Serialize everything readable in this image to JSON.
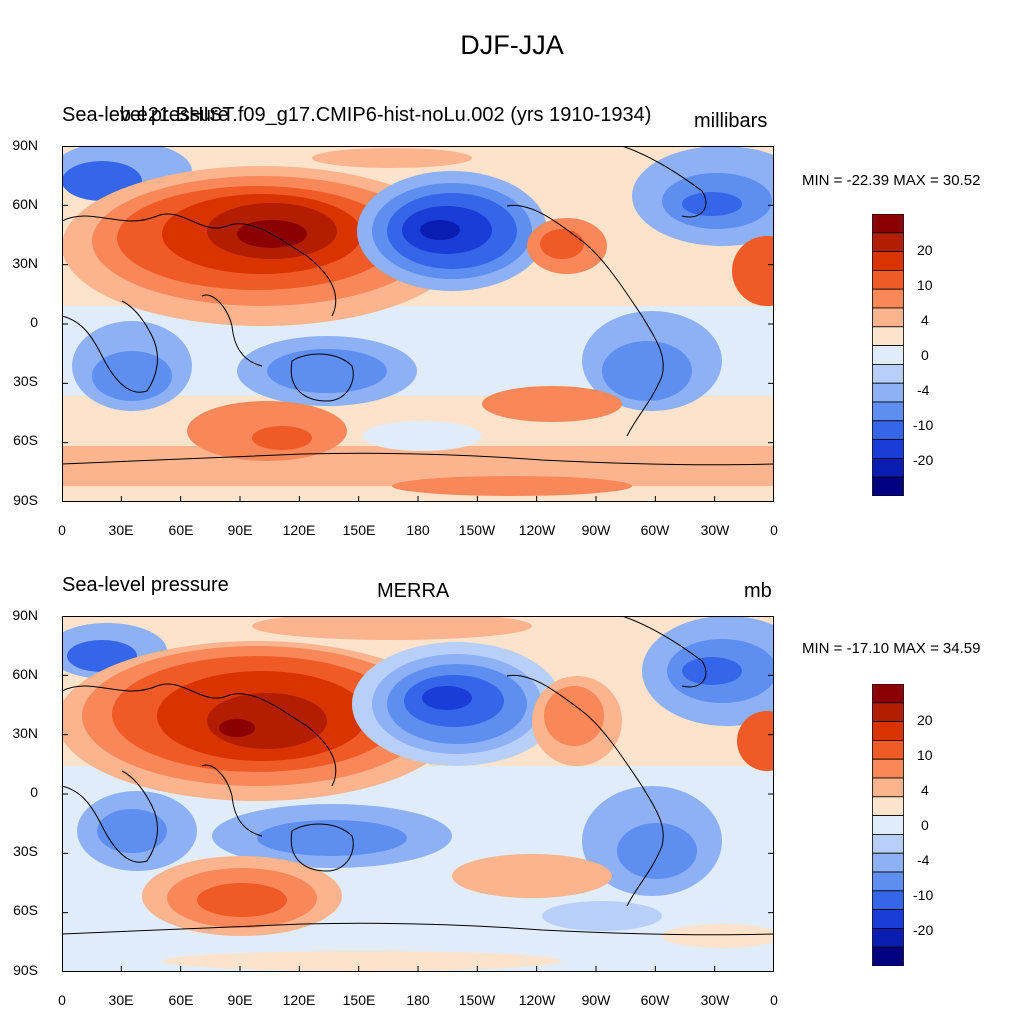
{
  "figure": {
    "title": "DJF-JJA"
  },
  "axes": {
    "lat_labels": [
      "90N",
      "60N",
      "30N",
      "0",
      "30S",
      "60S",
      "90S"
    ],
    "lon_labels": [
      "0",
      "30E",
      "60E",
      "90E",
      "120E",
      "150E",
      "180",
      "150W",
      "120W",
      "90W",
      "60W",
      "30W",
      "0"
    ]
  },
  "colorbar": {
    "labels": [
      "20",
      "10",
      "4",
      "0",
      "-4",
      "-10",
      "-20"
    ],
    "colors": [
      "#8b0000",
      "#b31d00",
      "#d93300",
      "#f05a26",
      "#f8875a",
      "#fcb48e",
      "#fde2cc",
      "#e1ecfb",
      "#b8d0f9",
      "#8eb0f5",
      "#5f8ef1",
      "#3565e8",
      "#1a3dd8",
      "#0a1db3",
      "#000080"
    ]
  },
  "panels": [
    {
      "left_title": "Sea-level pressure",
      "center_title": "b.e21.BHIST.f09_g17.CMIP6-hist-noLu.002 (yrs 1910-1934)",
      "right_title": "millibars",
      "stats": "MIN = -22.39 MAX =  30.52"
    },
    {
      "left_title": "Sea-level pressure",
      "center_title": "MERRA",
      "right_title": "mb",
      "stats": "MIN = -17.10 MAX =  34.59"
    }
  ],
  "chart_data": [
    {
      "type": "heatmap",
      "title": "DJF-JJA",
      "subtitle": "b.e21.BHIST.f09_g17.CMIP6-hist-noLu.002 (yrs 1910-1934)",
      "variable": "Sea-level pressure",
      "units": "millibars",
      "min": -22.39,
      "max": 30.52,
      "lon_range": [
        0,
        360
      ],
      "lat_range": [
        -90,
        90
      ],
      "contour_levels": [
        -20,
        -10,
        -4,
        0,
        4,
        10,
        20
      ]
    },
    {
      "type": "heatmap",
      "title": "DJF-JJA",
      "subtitle": "MERRA",
      "variable": "Sea-level pressure",
      "units": "mb",
      "min": -17.1,
      "max": 34.59,
      "lon_range": [
        0,
        360
      ],
      "lat_range": [
        -90,
        90
      ],
      "contour_levels": [
        -20,
        -10,
        -4,
        0,
        4,
        10,
        20
      ]
    }
  ]
}
